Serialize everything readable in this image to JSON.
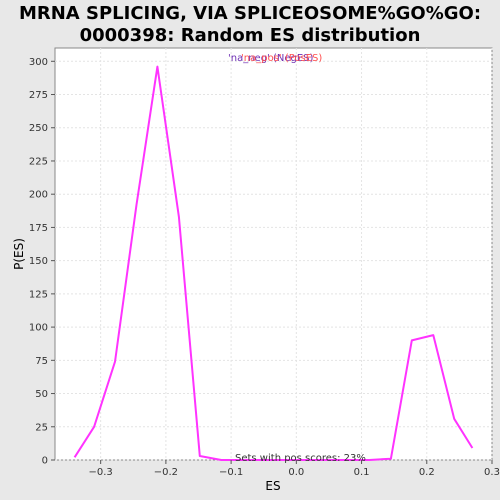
{
  "chart_data": {
    "type": "line",
    "title_lines": [
      "MRNA SPLICING, VIA SPLICEOSOME%GO%GO:",
      "0000398: Random ES distribution"
    ],
    "xlabel": "ES",
    "ylabel": "P(ES)",
    "xlim": [
      -0.37,
      0.3
    ],
    "ylim": [
      0,
      310
    ],
    "x_ticks": [
      -0.3,
      -0.2,
      -0.1,
      0.0,
      0.1,
      0.2,
      0.3
    ],
    "x_tick_labels": [
      "−0.3",
      "−0.2",
      "−0.1",
      "0.0",
      "0.1",
      "0.2",
      "0.3"
    ],
    "y_ticks": [
      0,
      25,
      50,
      75,
      100,
      125,
      150,
      175,
      200,
      225,
      250,
      275,
      300
    ],
    "y_tick_labels": [
      "0",
      "25",
      "50",
      "75",
      "100",
      "125",
      "150",
      "175",
      "200",
      "225",
      "250",
      "275",
      "300"
    ],
    "grid": true,
    "legend_position": "top-center",
    "legend": [
      {
        "text": "'na_neg' (NegES)",
        "color": "#6e2fb4"
      },
      {
        "text": "'na_pos' (PosES)",
        "color": "#ff5050"
      }
    ],
    "annotation": "Sets with pos scores: 23%",
    "series": [
      {
        "color": "#ff33ff",
        "x": [
          -0.34,
          -0.31,
          -0.278,
          -0.245,
          -0.213,
          -0.18,
          -0.148,
          -0.115,
          -0.083,
          -0.05,
          -0.018,
          0.015,
          0.047,
          0.08,
          0.112,
          0.145,
          0.177,
          0.21,
          0.242,
          0.27
        ],
        "y": [
          2,
          25,
          74,
          192,
          296,
          183,
          3,
          0,
          0,
          0,
          0,
          0,
          0,
          0,
          0,
          1,
          90,
          94,
          31,
          9
        ]
      }
    ]
  }
}
